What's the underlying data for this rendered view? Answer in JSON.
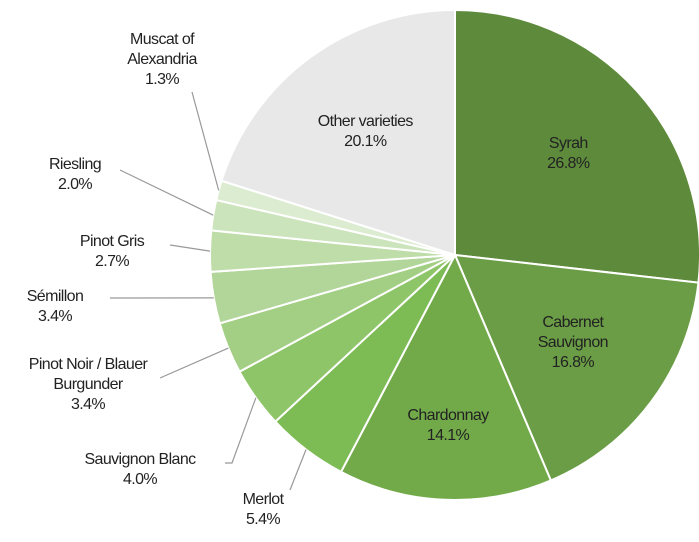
{
  "chart_data": {
    "type": "pie",
    "categories": [
      "Syrah",
      "Cabernet Sauvignon",
      "Chardonnay",
      "Merlot",
      "Sauvignon Blanc",
      "Pinot Noir / Blauer Burgunder",
      "Sémillon",
      "Pinot Gris",
      "Riesling",
      "Muscat of Alexandria",
      "Other varieties"
    ],
    "values": [
      26.8,
      16.8,
      14.1,
      5.4,
      4.0,
      3.4,
      3.4,
      2.7,
      2.0,
      1.3,
      20.1
    ],
    "value_labels": [
      "26.8%",
      "16.8%",
      "14.1%",
      "5.4%",
      "4.0%",
      "3.4%",
      "3.4%",
      "2.7%",
      "2.0%",
      "1.3%",
      "20.1%"
    ],
    "colors": [
      "#5e8a3c",
      "#6a9d45",
      "#72aa4a",
      "#7dbb55",
      "#8fc569",
      "#a3cf84",
      "#b2d69a",
      "#bfdda9",
      "#cce4bb",
      "#dcecd0",
      "#e8e8e8"
    ]
  }
}
